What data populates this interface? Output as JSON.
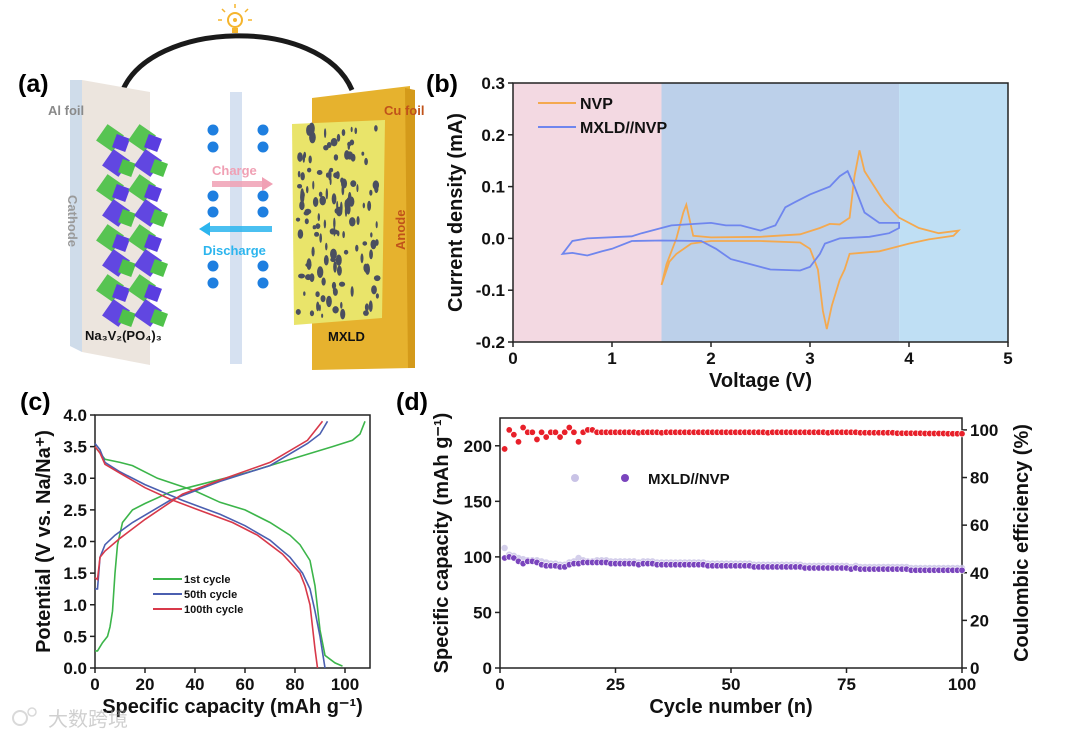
{
  "panel_labels": {
    "a": "(a)",
    "b": "(b)",
    "c": "(c)",
    "d": "(d)"
  },
  "schematic": {
    "al_foil": "Al foil",
    "cathode": "Cathode",
    "charge": "Charge",
    "discharge": "Discharge",
    "cu_foil": "Cu foil",
    "anode": "Anode",
    "cathode_material": "Na₃V₂(PO₄)₃",
    "anode_material": "MXLD",
    "colors": {
      "charge": "#f0a0b4",
      "discharge": "#2cb5ee",
      "ion": "#1e7fe0",
      "cu": "#e6b22e",
      "mxld": "#e9e46a"
    }
  },
  "watermark": "大数跨境",
  "chart_data": [
    {
      "id": "b",
      "type": "line",
      "xlabel": "Voltage (V)",
      "ylabel": "Current density (mA)",
      "xlim": [
        0,
        5
      ],
      "ylim": [
        -0.2,
        0.3
      ],
      "xticks": [
        "0",
        "1",
        "2",
        "3",
        "4",
        "5"
      ],
      "yticks": [
        "-0.2",
        "-0.1",
        "0.0",
        "0.1",
        "0.2",
        "0.3"
      ],
      "legend_position": "top-left",
      "regions": [
        {
          "from": 0,
          "to": 1.5,
          "color": "#f3d9e2"
        },
        {
          "from": 1.5,
          "to": 3.9,
          "color": "#bcd0ea"
        },
        {
          "from": 3.9,
          "to": 5,
          "color": "#bfdff4"
        }
      ],
      "series": [
        {
          "name": "NVP",
          "color": "#f4a94f",
          "points": [
            [
              1.5,
              -0.09
            ],
            [
              1.55,
              -0.05
            ],
            [
              1.65,
              0.0
            ],
            [
              1.72,
              0.05
            ],
            [
              1.75,
              0.065
            ],
            [
              1.78,
              0.04
            ],
            [
              1.82,
              0.005
            ],
            [
              2.0,
              0.002
            ],
            [
              2.5,
              0.003
            ],
            [
              2.9,
              0.008
            ],
            [
              3.1,
              0.02
            ],
            [
              3.2,
              0.028
            ],
            [
              3.3,
              0.027
            ],
            [
              3.4,
              0.04
            ],
            [
              3.45,
              0.12
            ],
            [
              3.5,
              0.17
            ],
            [
              3.55,
              0.13
            ],
            [
              3.65,
              0.1
            ],
            [
              3.75,
              0.07
            ],
            [
              3.9,
              0.04
            ],
            [
              4.1,
              0.02
            ],
            [
              4.3,
              0.01
            ],
            [
              4.5,
              0.015
            ],
            [
              4.45,
              0.005
            ],
            [
              4.2,
              -0.002
            ],
            [
              4.0,
              -0.01
            ],
            [
              3.7,
              -0.025
            ],
            [
              3.4,
              -0.03
            ],
            [
              3.35,
              -0.06
            ],
            [
              3.3,
              -0.08
            ],
            [
              3.22,
              -0.13
            ],
            [
              3.17,
              -0.175
            ],
            [
              3.13,
              -0.14
            ],
            [
              3.08,
              -0.06
            ],
            [
              3.0,
              -0.02
            ],
            [
              2.9,
              -0.008
            ],
            [
              2.5,
              -0.005
            ],
            [
              2.0,
              -0.005
            ],
            [
              1.8,
              -0.01
            ],
            [
              1.65,
              -0.03
            ],
            [
              1.58,
              -0.045
            ],
            [
              1.5,
              -0.09
            ]
          ]
        },
        {
          "name": "MXLD//NVP",
          "color": "#6f86ee",
          "points": [
            [
              0.5,
              -0.03
            ],
            [
              0.6,
              -0.005
            ],
            [
              0.75,
              0.0
            ],
            [
              1.2,
              0.004
            ],
            [
              1.3,
              0.01
            ],
            [
              1.5,
              0.02
            ],
            [
              1.6,
              0.025
            ],
            [
              2.0,
              0.03
            ],
            [
              2.15,
              0.025
            ],
            [
              2.3,
              0.025
            ],
            [
              2.5,
              0.015
            ],
            [
              2.65,
              0.025
            ],
            [
              2.75,
              0.06
            ],
            [
              2.85,
              0.07
            ],
            [
              3.0,
              0.085
            ],
            [
              3.2,
              0.1
            ],
            [
              3.3,
              0.12
            ],
            [
              3.38,
              0.13
            ],
            [
              3.45,
              0.1
            ],
            [
              3.55,
              0.05
            ],
            [
              3.7,
              0.03
            ],
            [
              3.9,
              0.03
            ],
            [
              3.9,
              0.02
            ],
            [
              3.8,
              0.01
            ],
            [
              3.6,
              0.003
            ],
            [
              3.3,
              0.0
            ],
            [
              3.15,
              -0.01
            ],
            [
              3.1,
              -0.03
            ],
            [
              3.0,
              -0.055
            ],
            [
              2.9,
              -0.062
            ],
            [
              2.6,
              -0.06
            ],
            [
              2.4,
              -0.05
            ],
            [
              2.2,
              -0.04
            ],
            [
              2.05,
              -0.02
            ],
            [
              1.9,
              -0.005
            ],
            [
              1.5,
              -0.004
            ],
            [
              1.2,
              -0.005
            ],
            [
              1.0,
              -0.02
            ],
            [
              0.9,
              -0.025
            ],
            [
              0.75,
              -0.033
            ],
            [
              0.6,
              -0.028
            ],
            [
              0.5,
              -0.03
            ]
          ]
        }
      ]
    },
    {
      "id": "c",
      "type": "line",
      "xlabel": "Specific capacity (mAh g⁻¹)",
      "ylabel": "Potential (V vs. Na/Na⁺)",
      "xlim": [
        0,
        110
      ],
      "ylim": [
        0,
        4.0
      ],
      "xticks": [
        "0",
        "20",
        "40",
        "60",
        "80",
        "100"
      ],
      "yticks": [
        "0.0",
        "0.5",
        "1.0",
        "1.5",
        "2.0",
        "2.5",
        "3.0",
        "3.5",
        "4.0"
      ],
      "legend_position": "center-left",
      "series": [
        {
          "name": "1st cycle",
          "color": "#3cb54a",
          "charge": [
            [
              0,
              0.27
            ],
            [
              1,
              0.27
            ],
            [
              3,
              0.4
            ],
            [
              5,
              0.5
            ],
            [
              6,
              0.65
            ],
            [
              7,
              0.9
            ],
            [
              8,
              1.5
            ],
            [
              9,
              1.95
            ],
            [
              11,
              2.3
            ],
            [
              15,
              2.5
            ],
            [
              20,
              2.6
            ],
            [
              30,
              2.78
            ],
            [
              40,
              2.88
            ],
            [
              60,
              3.08
            ],
            [
              80,
              3.32
            ],
            [
              95,
              3.5
            ],
            [
              103,
              3.6
            ],
            [
              106,
              3.7
            ],
            [
              108,
              3.9
            ]
          ],
          "discharge": [
            [
              0,
              3.5
            ],
            [
              2,
              3.4
            ],
            [
              4,
              3.3
            ],
            [
              10,
              3.25
            ],
            [
              15,
              3.2
            ],
            [
              25,
              3.0
            ],
            [
              40,
              2.8
            ],
            [
              50,
              2.62
            ],
            [
              60,
              2.5
            ],
            [
              70,
              2.3
            ],
            [
              78,
              2.1
            ],
            [
              82,
              1.95
            ],
            [
              86,
              1.7
            ],
            [
              88,
              1.3
            ],
            [
              90,
              0.6
            ],
            [
              92,
              0.2
            ],
            [
              96,
              0.08
            ],
            [
              99,
              0.03
            ]
          ]
        },
        {
          "name": "50th cycle",
          "color": "#4b5fb0",
          "charge": [
            [
              0,
              1.25
            ],
            [
              1,
              1.25
            ],
            [
              2,
              1.75
            ],
            [
              4,
              1.95
            ],
            [
              8,
              2.1
            ],
            [
              15,
              2.3
            ],
            [
              30,
              2.65
            ],
            [
              50,
              2.95
            ],
            [
              70,
              3.2
            ],
            [
              85,
              3.55
            ],
            [
              90,
              3.7
            ],
            [
              93,
              3.9
            ]
          ],
          "discharge": [
            [
              0,
              3.55
            ],
            [
              2,
              3.45
            ],
            [
              4,
              3.25
            ],
            [
              10,
              3.1
            ],
            [
              20,
              2.9
            ],
            [
              35,
              2.65
            ],
            [
              50,
              2.43
            ],
            [
              60,
              2.25
            ],
            [
              70,
              2.02
            ],
            [
              78,
              1.75
            ],
            [
              83,
              1.5
            ],
            [
              86,
              1.25
            ],
            [
              88,
              0.9
            ],
            [
              90,
              0.5
            ],
            [
              92,
              0
            ]
          ]
        },
        {
          "name": "100th cycle",
          "color": "#d8394a",
          "charge": [
            [
              0,
              1.43
            ],
            [
              1,
              1.4
            ],
            [
              2,
              1.75
            ],
            [
              4,
              1.85
            ],
            [
              10,
              2.05
            ],
            [
              20,
              2.35
            ],
            [
              35,
              2.75
            ],
            [
              50,
              2.97
            ],
            [
              70,
              3.25
            ],
            [
              85,
              3.6
            ],
            [
              89,
              3.8
            ],
            [
              91,
              3.9
            ]
          ],
          "discharge": [
            [
              0,
              3.5
            ],
            [
              2,
              3.4
            ],
            [
              4,
              3.22
            ],
            [
              10,
              3.08
            ],
            [
              20,
              2.85
            ],
            [
              30,
              2.67
            ],
            [
              40,
              2.52
            ],
            [
              55,
              2.3
            ],
            [
              65,
              2.1
            ],
            [
              75,
              1.8
            ],
            [
              82,
              1.5
            ],
            [
              84,
              1.3
            ],
            [
              86,
              1.0
            ],
            [
              88,
              0.3
            ],
            [
              89,
              0
            ]
          ]
        }
      ]
    },
    {
      "id": "d",
      "type": "scatter",
      "xlabel": "Cycle number (n)",
      "ylabel": "Specific capacity (mAh g⁻¹)",
      "ylabel_right": "Coulombic efficiency (%)",
      "xlim": [
        0,
        100
      ],
      "ylim": [
        0,
        225
      ],
      "ylim_right": [
        0,
        105
      ],
      "xticks": [
        "0",
        "25",
        "50",
        "75",
        "100"
      ],
      "yticks": [
        "0",
        "50",
        "100",
        "150",
        "200"
      ],
      "yticks_right": [
        "0",
        "20",
        "40",
        "60",
        "80",
        "100"
      ],
      "legend_label": "MXLD//NVP",
      "legend_position": "center",
      "colors": {
        "charge": "#c9c3e6",
        "discharge": "#7a45bd",
        "ce": "#e8202a"
      },
      "charge_capacity": [
        108,
        102,
        101,
        99,
        98,
        97,
        97,
        97,
        96,
        95,
        94,
        94,
        93,
        93,
        95,
        96,
        99,
        97,
        96,
        96,
        97,
        97,
        97,
        96,
        96,
        96,
        96,
        96,
        96,
        95,
        96,
        96,
        96,
        95,
        95,
        95,
        95,
        95,
        95,
        95,
        95,
        95,
        95,
        95,
        94,
        94,
        94,
        94,
        94,
        94,
        94,
        94,
        94,
        94,
        93,
        93,
        93,
        93,
        93,
        93,
        93,
        93,
        93,
        93,
        93,
        92,
        92,
        92,
        92,
        92,
        92,
        92,
        92,
        92,
        92,
        91,
        92,
        91,
        91,
        91,
        91,
        91,
        91,
        91,
        91,
        91,
        91,
        91,
        90,
        90,
        90,
        90,
        90,
        90,
        90,
        90,
        90,
        90,
        90,
        90
      ],
      "discharge_capacity": [
        99,
        100,
        99,
        96,
        94,
        96,
        96,
        95,
        93,
        92,
        92,
        92,
        91,
        91,
        93,
        94,
        94,
        95,
        95,
        95,
        95,
        95,
        95,
        94,
        94,
        94,
        94,
        94,
        94,
        93,
        94,
        94,
        94,
        93,
        93,
        93,
        93,
        93,
        93,
        93,
        93,
        93,
        93,
        93,
        92,
        92,
        92,
        92,
        92,
        92,
        92,
        92,
        92,
        92,
        91,
        91,
        91,
        91,
        91,
        91,
        91,
        91,
        91,
        91,
        91,
        90,
        90,
        90,
        90,
        90,
        90,
        90,
        90,
        90,
        90,
        89,
        90,
        89,
        89,
        89,
        89,
        89,
        89,
        89,
        89,
        89,
        89,
        89,
        88,
        88,
        88,
        88,
        88,
        88,
        88,
        88,
        88,
        88,
        88,
        88
      ],
      "coulombic_efficiency": [
        92,
        100,
        98,
        95,
        101,
        99,
        99,
        96,
        99,
        97,
        99,
        99,
        97,
        99,
        101,
        99,
        95,
        99,
        100,
        100,
        99,
        99,
        99,
        99,
        99,
        99,
        99,
        99,
        99,
        98.8,
        99,
        99,
        99,
        99,
        98.8,
        99,
        99,
        99,
        99,
        99,
        99,
        99,
        99,
        99,
        99,
        99,
        99,
        99,
        99,
        99,
        99,
        99,
        99,
        99,
        99,
        99,
        99,
        98.8,
        99,
        99,
        99,
        99,
        99,
        99,
        99,
        99,
        99,
        99,
        99,
        99,
        98.8,
        99,
        99,
        99,
        99,
        99,
        99,
        98.8,
        98.8,
        98.8,
        98.8,
        98.8,
        98.8,
        98.8,
        98.8,
        98.6,
        98.6,
        98.6,
        98.6,
        98.6,
        98.6,
        98.5,
        98.5,
        98.5,
        98.5,
        98.5,
        98.4,
        98.4,
        98.4,
        98.4
      ]
    }
  ]
}
